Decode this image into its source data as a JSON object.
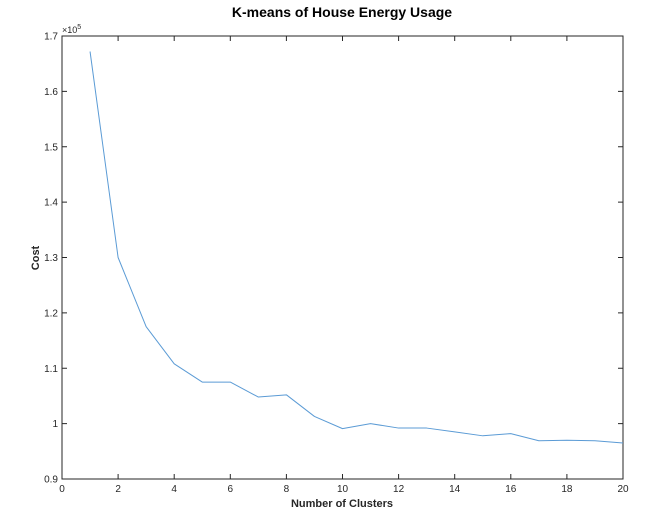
{
  "chart_data": {
    "type": "line",
    "title": "K-means of House Energy Usage",
    "xlabel": "Number of Clusters",
    "ylabel": "Cost",
    "y_multiplier_label": "×10",
    "y_multiplier_exponent": "5",
    "xlim": [
      0,
      20
    ],
    "ylim": [
      0.9,
      1.7
    ],
    "x_ticks": [
      0,
      2,
      4,
      6,
      8,
      10,
      12,
      14,
      16,
      18,
      20
    ],
    "y_ticks": [
      0.9,
      1,
      1.1,
      1.2,
      1.3,
      1.4,
      1.5,
      1.6,
      1.7
    ],
    "y_tick_labels": [
      "0.9",
      "1",
      "1.1",
      "1.2",
      "1.3",
      "1.4",
      "1.5",
      "1.6",
      "1.7"
    ],
    "grid": false,
    "line_color": "#5b9bd5",
    "series": [
      {
        "x": [
          1,
          2,
          3,
          4,
          5,
          6,
          7,
          8,
          9,
          10,
          11,
          12,
          13,
          14,
          15,
          16,
          17,
          18,
          19,
          20
        ],
        "values": [
          1.672,
          1.3,
          1.175,
          1.108,
          1.075,
          1.075,
          1.048,
          1.052,
          1.013,
          0.991,
          1.0,
          0.992,
          0.992,
          0.985,
          0.978,
          0.982,
          0.969,
          0.97,
          0.969,
          0.965
        ]
      }
    ]
  }
}
